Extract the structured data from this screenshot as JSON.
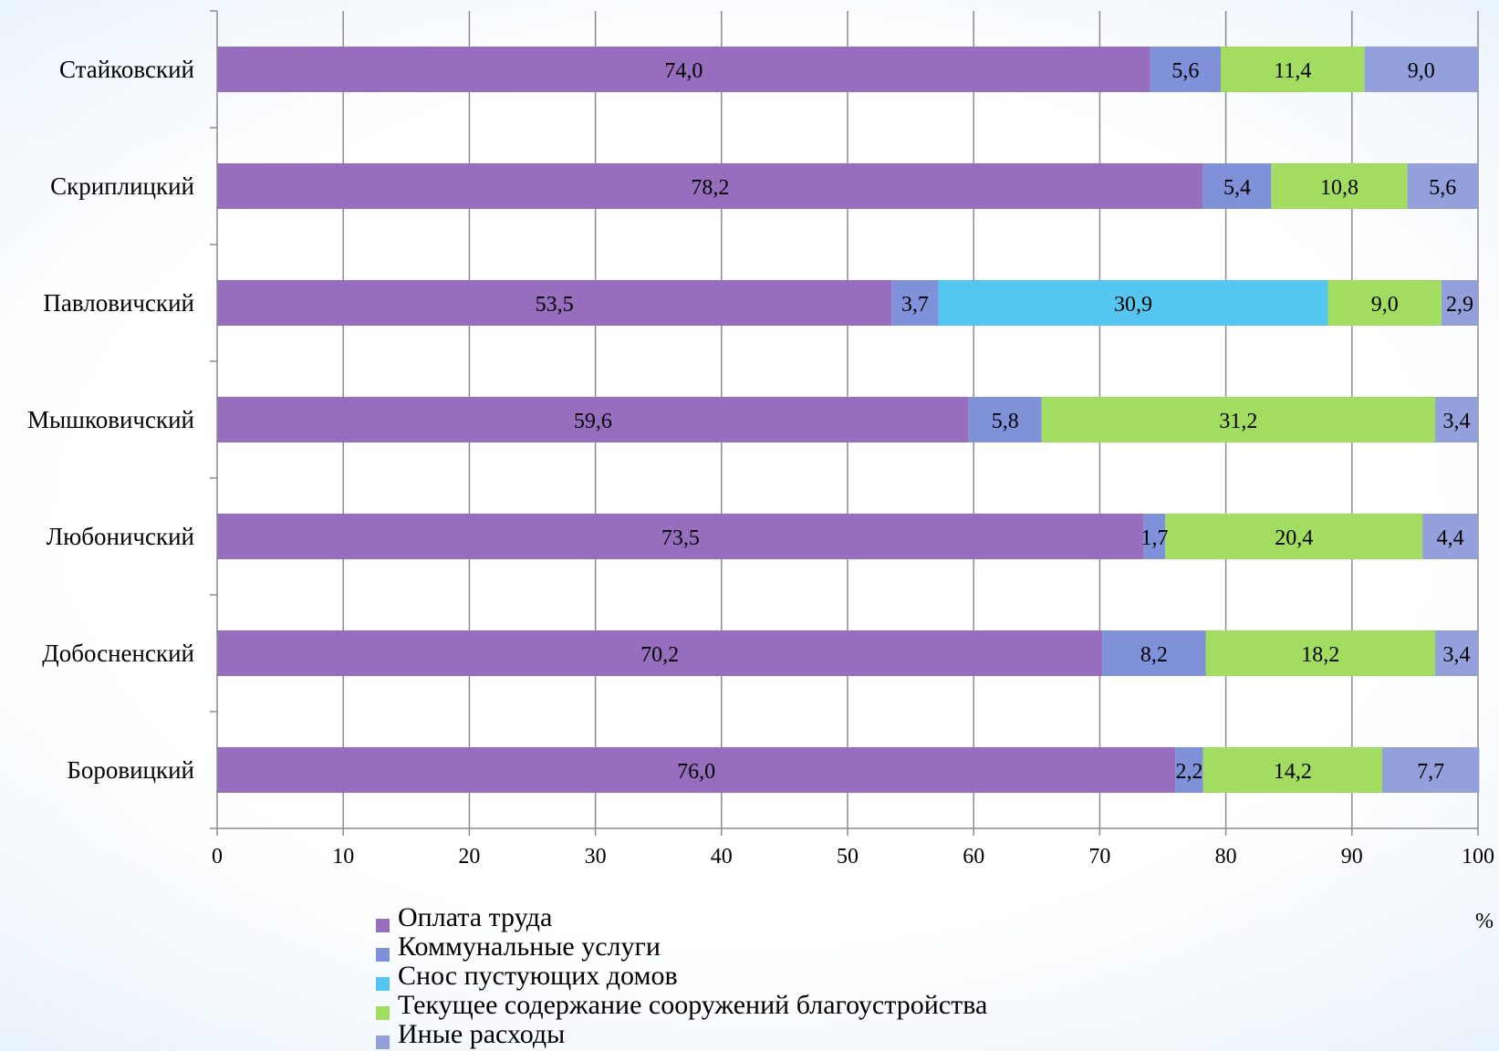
{
  "chart_data": {
    "type": "bar",
    "orientation": "horizontal",
    "stacked": true,
    "categories": [
      "Стайковский",
      "Скриплицкий",
      "Павловичский",
      "Мышковичский",
      "Любоничский",
      "Добосненский",
      "Боровицкий"
    ],
    "series": [
      {
        "name": "Оплата труда",
        "color": "#976ebd",
        "values": [
          74.0,
          78.2,
          53.5,
          59.6,
          73.5,
          70.2,
          76.0
        ],
        "labels": [
          "74,0",
          "78,2",
          "53,5",
          "59,6",
          "73,5",
          "70,2",
          "76,0"
        ]
      },
      {
        "name": "Коммунальные услуги",
        "color": "#7f91d8",
        "values": [
          5.6,
          5.4,
          3.7,
          5.8,
          1.7,
          8.2,
          2.2
        ],
        "labels": [
          "5,6",
          "5,4",
          "3,7",
          "5,8",
          "1,7",
          "8,2",
          "2,2"
        ]
      },
      {
        "name": "Снос пустующих домов",
        "color": "#55c6ef",
        "values": [
          0,
          0,
          30.9,
          0,
          0,
          0,
          0
        ],
        "labels": [
          "",
          "",
          "30,9",
          "",
          "",
          "",
          ""
        ]
      },
      {
        "name": "Текущее содержание сооружений благоустройства",
        "color": "#a2dc60",
        "values": [
          11.4,
          10.8,
          9.0,
          31.2,
          20.4,
          18.2,
          14.2
        ],
        "labels": [
          "11,4",
          "10,8",
          "9,0",
          "31,2",
          "20,4",
          "18,2",
          "14,2"
        ]
      },
      {
        "name": "Иные расходы",
        "color": "#94a0dc",
        "values": [
          9.0,
          5.6,
          2.9,
          3.4,
          4.4,
          3.4,
          7.7
        ],
        "labels": [
          "9,0",
          "5,6",
          "2,9",
          "3,4",
          "4,4",
          "3,4",
          "7,7"
        ]
      }
    ],
    "xlim": [
      0,
      100
    ],
    "xticks": [
      "0",
      "10",
      "20",
      "30",
      "40",
      "50",
      "60",
      "70",
      "80",
      "90",
      "100"
    ],
    "unit_label": "%",
    "grid": "vertical",
    "legend_position": "bottom"
  }
}
